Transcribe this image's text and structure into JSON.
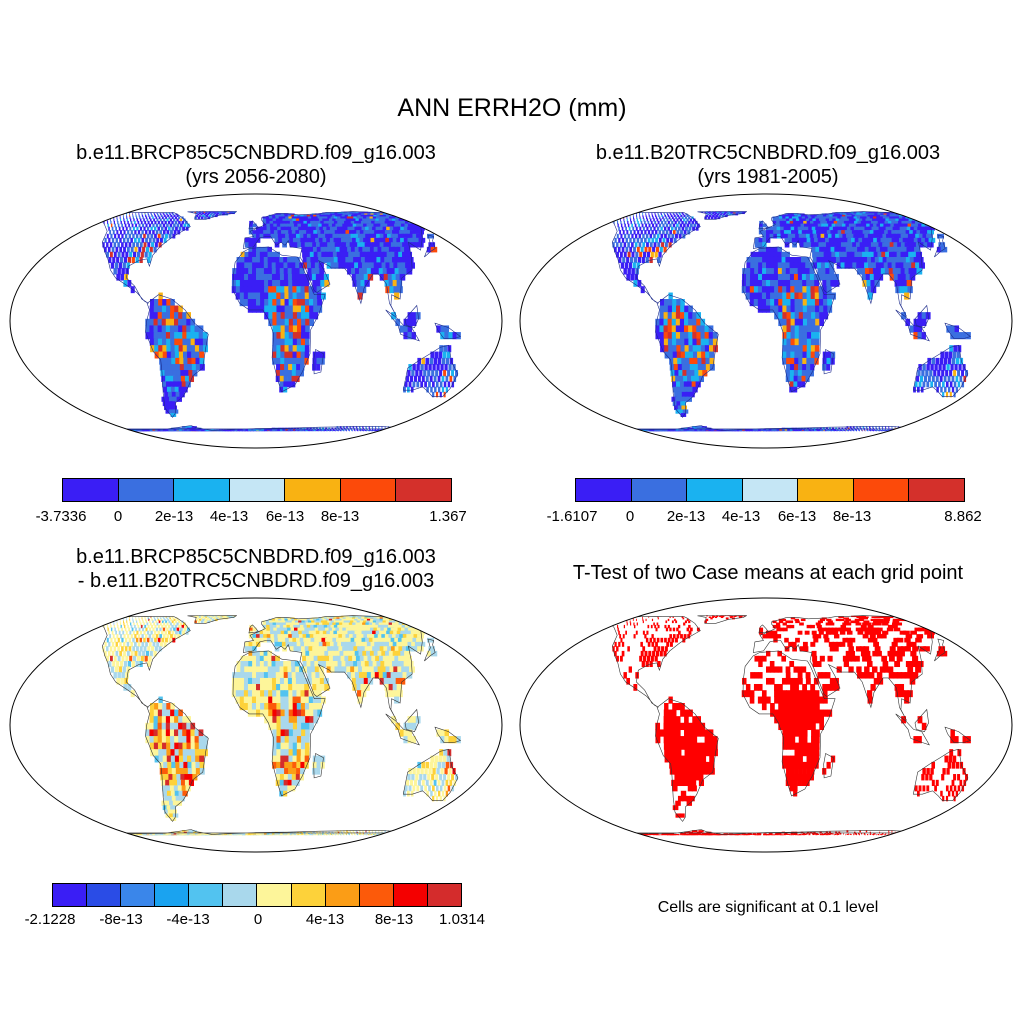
{
  "title": "ANN ERRH2O (mm)",
  "panels": [
    {
      "title_line1": "b.e11.BRCP85C5CNBDRD.f09_g16.003",
      "title_line2": "(yrs 2056-2080)",
      "map_style": "blue-field",
      "colorbar": {
        "colors": [
          "#3a1ef5",
          "#3a6fe0",
          "#1ab2f0",
          "#c5e6f5",
          "#f9b212",
          "#fc4a0a",
          "#d4302b"
        ],
        "labels": [
          "-3.7336",
          "0",
          "2e-13",
          "4e-13",
          "6e-13",
          "8e-13",
          "1.367"
        ]
      }
    },
    {
      "title_line1": "b.e11.B20TRC5CNBDRD.f09_g16.003",
      "title_line2": "(yrs 1981-2005)",
      "map_style": "blue-field",
      "colorbar": {
        "colors": [
          "#3a1ef5",
          "#3a6fe0",
          "#1ab2f0",
          "#c5e6f5",
          "#f9b212",
          "#fc4a0a",
          "#d4302b"
        ],
        "labels": [
          "-1.6107",
          "0",
          "2e-13",
          "4e-13",
          "6e-13",
          "8e-13",
          "8.862"
        ]
      }
    },
    {
      "title_line1": "b.e11.BRCP85C5CNBDRD.f09_g16.003",
      "title_line2": "- b.e11.B20TRC5CNBDRD.f09_g16.003",
      "map_style": "difference",
      "colorbar": {
        "colors": [
          "#3a1ef5",
          "#2a4ce6",
          "#3a86ea",
          "#1aa3f0",
          "#52c3f0",
          "#a9d8ec",
          "#fdf59a",
          "#fdd23a",
          "#fb9d16",
          "#fc5a0a",
          "#f40000",
          "#d42c2c"
        ],
        "labels": [
          "-2.1228",
          "-8e-13",
          "-4e-13",
          "0",
          "4e-13",
          "8e-13",
          "1.0314"
        ]
      }
    },
    {
      "title_line1": "T-Test of two Case means at each grid point",
      "map_style": "significance",
      "note": "Cells are significant at 0.1 level"
    }
  ]
}
